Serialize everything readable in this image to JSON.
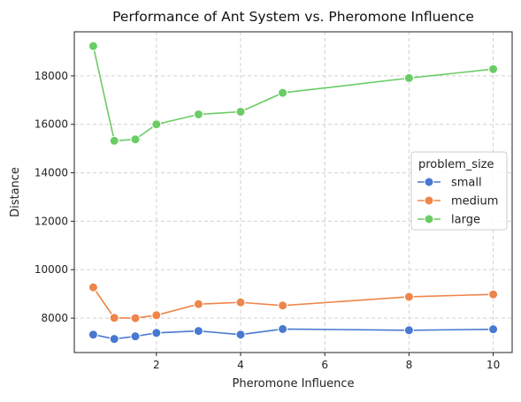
{
  "chart_data": {
    "type": "line",
    "title": "Performance of Ant System vs. Pheromone Influence",
    "xlabel": "Pheromone Influence",
    "ylabel": "Distance",
    "x": [
      0.5,
      1,
      1.5,
      2,
      3,
      4,
      5,
      8,
      10
    ],
    "xlim": [
      0.05,
      10.45
    ],
    "ylim": [
      6580,
      19820
    ],
    "xticks": [
      2,
      4,
      6,
      8,
      10
    ],
    "yticks": [
      8000,
      10000,
      12000,
      14000,
      16000,
      18000
    ],
    "grid": true,
    "legend": {
      "title": "problem_size",
      "position": "center-right"
    },
    "series": [
      {
        "name": "small",
        "color": "#4878d0",
        "values": [
          7320,
          7140,
          7250,
          7390,
          7470,
          7320,
          7550,
          7500,
          7540
        ]
      },
      {
        "name": "medium",
        "color": "#ee854a",
        "values": [
          9270,
          8010,
          8000,
          8120,
          8580,
          8650,
          8520,
          8880,
          8980
        ]
      },
      {
        "name": "large",
        "color": "#6acc64",
        "values": [
          19230,
          15320,
          15380,
          16000,
          16410,
          16520,
          17300,
          17910,
          18280
        ]
      }
    ]
  }
}
